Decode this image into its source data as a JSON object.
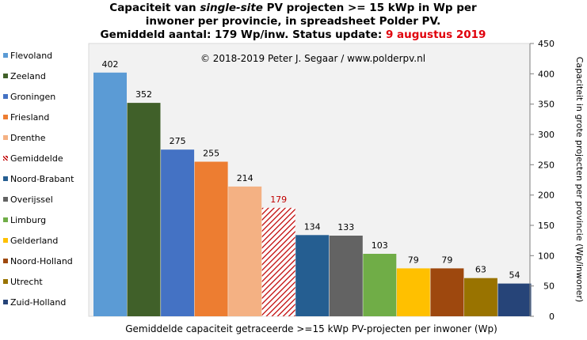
{
  "title": {
    "line1_a": "Capaciteit van ",
    "line1_em": "single-site",
    "line1_b": " PV projecten >= 15 kWp in Wp per",
    "line2": "inwoner per provincie, in spreadsheet Polder PV.",
    "line3_a": "Gemiddeld aantal: 179 Wp/inw. Status update: ",
    "line3_date": "9 augustus 2019"
  },
  "copyright": "© 2018-2019  Peter J. Segaar / www.polderpv.nl",
  "chart_data": {
    "type": "bar",
    "categories": [
      "Flevoland",
      "Zeeland",
      "Groningen",
      "Friesland",
      "Drenthe",
      "Gemiddelde",
      "Noord-Brabant",
      "Overijssel",
      "Limburg",
      "Gelderland",
      "Noord-Holland",
      "Utrecht",
      "Zuid-Holland"
    ],
    "values": [
      402,
      352,
      275,
      255,
      214,
      179,
      134,
      133,
      103,
      79,
      79,
      63,
      54
    ],
    "colors": [
      "#5b9bd5",
      "#406029",
      "#4472c4",
      "#ed7d31",
      "#f4b183",
      "#c00000",
      "#255e91",
      "#636363",
      "#70ad47",
      "#ffc000",
      "#9e480e",
      "#997300",
      "#264478"
    ],
    "average_index": 5,
    "average_label_color": "#c00000",
    "xlabel": "Gemiddelde capaciteit getraceerde >=15 kWp PV-projecten per inwoner (Wp)",
    "ylabel": "Capaciteit in grote projecten per provincie (Wp/inwoner)",
    "ylim": [
      0,
      450
    ],
    "yticks": [
      0,
      50,
      100,
      150,
      200,
      250,
      300,
      350,
      400,
      450
    ],
    "grid": false,
    "legend_position": "left"
  }
}
